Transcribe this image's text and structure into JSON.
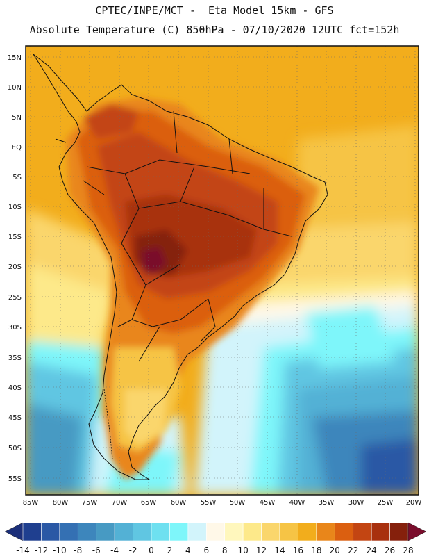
{
  "header": {
    "line1": "CPTEC/INPE/MCT -  Eta Model 15km - GFS",
    "line2": "Absolute Temperature (C) 850hPa - 07/10/2020 12UTC fct=152h"
  },
  "map": {
    "lat_labels": [
      "15N",
      "10N",
      "5N",
      "EQ",
      "5S",
      "10S",
      "15S",
      "20S",
      "25S",
      "30S",
      "35S",
      "40S",
      "45S",
      "50S",
      "55S"
    ],
    "lon_labels": [
      "85W",
      "80W",
      "75W",
      "70W",
      "65W",
      "60W",
      "55W",
      "50W",
      "45W",
      "40W",
      "35W",
      "30W",
      "25W",
      "20W"
    ],
    "hottest_region": "interior Brazil / Bolivia-Paraguay border",
    "coldest_region": "South Atlantic east of Patagonia"
  },
  "colorbar": {
    "labels": [
      "-14",
      "-12",
      "-10",
      "-8",
      "-6",
      "-4",
      "-2",
      "0",
      "2",
      "4",
      "6",
      "8",
      "10",
      "12",
      "14",
      "16",
      "18",
      "20",
      "22",
      "24",
      "26",
      "28"
    ],
    "colors": [
      "#1f3f8f",
      "#2a58a5",
      "#3470b3",
      "#3d86bc",
      "#479ac3",
      "#53b1d5",
      "#60c6e2",
      "#6ee0f0",
      "#7ef6fa",
      "#d2f4fb",
      "#fff8e8",
      "#fff7bd",
      "#fde98a",
      "#fad66c",
      "#f6c445",
      "#f2ad1c",
      "#e9861a",
      "#db5f10",
      "#c34512",
      "#a8300e",
      "#85200c"
    ],
    "under_color": "#1c2f7a",
    "over_color": "#7a0d2c"
  }
}
